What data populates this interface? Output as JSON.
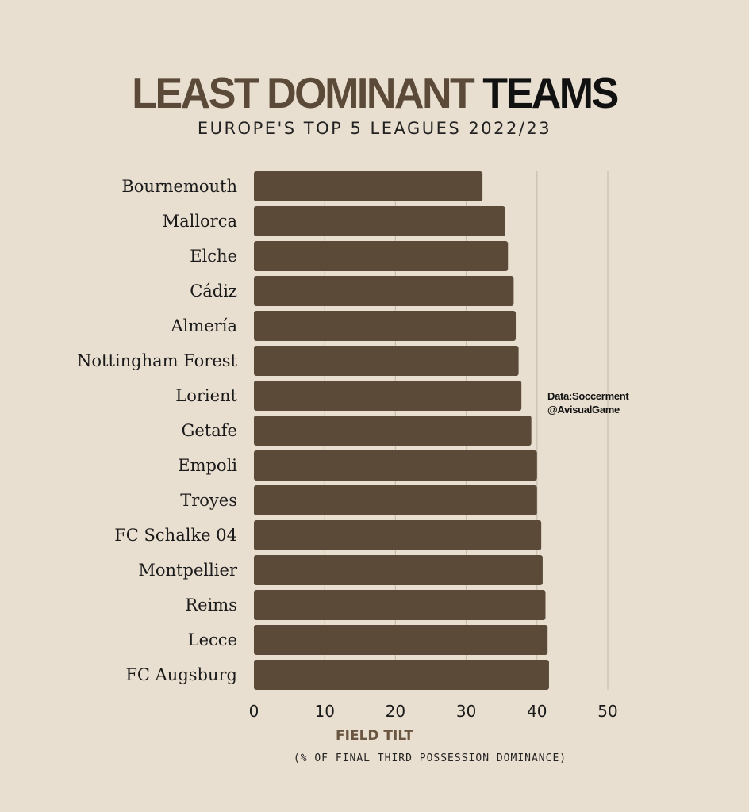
{
  "chart_data": {
    "type": "bar",
    "orientation": "horizontal",
    "title_part1": "LEAST DOMINANT",
    "title_part2": "TEAMS",
    "subtitle": "EUROPE'S TOP 5 LEAGUES 2022/23",
    "xlabel": "FIELD TILT",
    "xlabel_sub": "(% OF FINAL THIRD POSSESSION DOMINANCE)",
    "credit_line1": "Data:Soccerment",
    "credit_line2": "@AvisualGame",
    "categories": [
      "Bournemouth",
      "Mallorca",
      "Elche",
      "Cádiz",
      "Almería",
      "Nottingham Forest",
      "Lorient",
      "Getafe",
      "Empoli",
      "Troyes",
      "FC Schalke 04",
      "Montpellier",
      "Reims",
      "Lecce",
      "FC Augsburg"
    ],
    "values": [
      32.3,
      35.5,
      35.9,
      36.7,
      37.0,
      37.4,
      37.8,
      39.2,
      40.0,
      40.0,
      40.6,
      40.8,
      41.2,
      41.5,
      41.7
    ],
    "xlim": [
      0,
      50
    ],
    "xticks": [
      "0",
      "10",
      "20",
      "30",
      "40",
      "50"
    ],
    "grid": true,
    "colors": {
      "bar": "#5b4a38",
      "background": "#e9dfd0",
      "grid": "#c9bdad"
    }
  }
}
